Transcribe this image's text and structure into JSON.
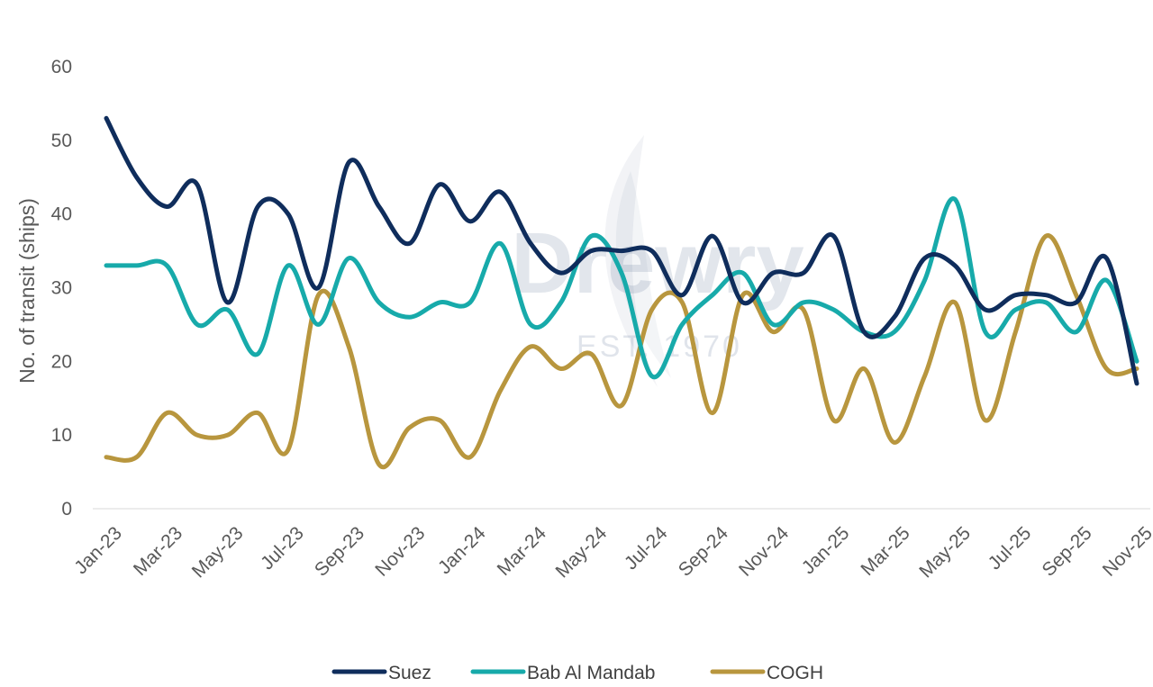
{
  "watermark": {
    "brand": "Drewry",
    "established": "EST. 1970"
  },
  "chart_data": {
    "type": "line",
    "title": "",
    "xlabel": "",
    "ylabel": "No. of transit (ships)",
    "ylim": [
      0,
      60
    ],
    "yticks": [
      0,
      10,
      20,
      30,
      40,
      50,
      60
    ],
    "grid": false,
    "legend_position": "bottom",
    "x": [
      "Jan-23",
      "Feb-23",
      "Mar-23",
      "Apr-23",
      "May-23",
      "Jun-23",
      "Jul-23",
      "Aug-23",
      "Sep-23",
      "Oct-23",
      "Nov-23",
      "Dec-23",
      "Jan-24",
      "Feb-24",
      "Mar-24",
      "Apr-24",
      "May-24",
      "Jun-24",
      "Jul-24",
      "Aug-24",
      "Sep-24",
      "Oct-24",
      "Nov-24",
      "Dec-24",
      "Jan-25",
      "Feb-25",
      "Mar-25",
      "Apr-25",
      "May-25",
      "Jun-25",
      "Jul-25",
      "Aug-25",
      "Sep-25",
      "Oct-25",
      "Nov-25"
    ],
    "xtick_labels": [
      "Jan-23",
      "Mar-23",
      "May-23",
      "Jul-23",
      "Sep-23",
      "Nov-23",
      "Jan-24",
      "Mar-24",
      "May-24",
      "Jul-24",
      "Sep-24",
      "Nov-24",
      "Jan-25",
      "Mar-25",
      "May-25",
      "Jul-25",
      "Sep-25",
      "Nov-25"
    ],
    "series": [
      {
        "name": "Suez",
        "color": "#0f2d5c",
        "values": [
          53,
          45,
          41,
          44,
          28,
          41,
          40,
          30,
          47,
          41,
          36,
          44,
          39,
          43,
          36,
          32,
          35,
          35,
          35,
          29,
          37,
          28,
          32,
          32,
          37,
          24,
          26,
          34,
          33,
          27,
          29,
          29,
          28,
          34,
          17
        ]
      },
      {
        "name": "Bab Al Mandab",
        "color": "#17aaaa",
        "values": [
          33,
          33,
          33,
          25,
          27,
          21,
          33,
          25,
          34,
          28,
          26,
          28,
          28,
          36,
          25,
          28,
          37,
          32,
          18,
          25,
          29,
          32,
          25,
          28,
          27,
          24,
          24,
          31,
          42,
          24,
          27,
          28,
          24,
          31,
          20
        ]
      },
      {
        "name": "COGH",
        "color": "#b8963e",
        "values": [
          7,
          7,
          13,
          10,
          10,
          13,
          8,
          29,
          22,
          6,
          11,
          12,
          7,
          16,
          22,
          19,
          21,
          14,
          27,
          28,
          13,
          29,
          24,
          27,
          12,
          19,
          9,
          18,
          28,
          12,
          24,
          37,
          29,
          19,
          19
        ]
      }
    ]
  }
}
